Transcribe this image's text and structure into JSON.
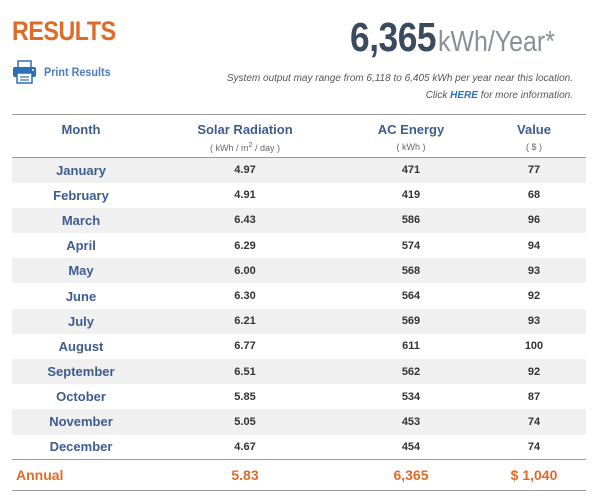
{
  "header": {
    "title": "RESULTS",
    "print_label": "Print Results",
    "total_value": "6,365",
    "total_unit": "kWh/Year*",
    "output_note": "System output may range from 6,118 to 6,405 kWh per year near this location.",
    "click_prefix": "Click ",
    "click_link": "HERE",
    "click_suffix": " for more information."
  },
  "table": {
    "columns": [
      {
        "label": "Month",
        "sub": ""
      },
      {
        "label": "Solar Radiation",
        "sub_pre": "( kWh / m",
        "sub_sup": "2",
        "sub_post": " / day )"
      },
      {
        "label": "AC Energy",
        "sub": "( kWh )"
      },
      {
        "label": "Value",
        "sub": "( $ )"
      }
    ],
    "rows": [
      {
        "month": "January",
        "solar": "4.97",
        "ac": "471",
        "value": "77"
      },
      {
        "month": "February",
        "solar": "4.91",
        "ac": "419",
        "value": "68"
      },
      {
        "month": "March",
        "solar": "6.43",
        "ac": "586",
        "value": "96"
      },
      {
        "month": "April",
        "solar": "6.29",
        "ac": "574",
        "value": "94"
      },
      {
        "month": "May",
        "solar": "6.00",
        "ac": "568",
        "value": "93"
      },
      {
        "month": "June",
        "solar": "6.30",
        "ac": "564",
        "value": "92"
      },
      {
        "month": "July",
        "solar": "6.21",
        "ac": "569",
        "value": "93"
      },
      {
        "month": "August",
        "solar": "6.77",
        "ac": "611",
        "value": "100"
      },
      {
        "month": "September",
        "solar": "6.51",
        "ac": "562",
        "value": "92"
      },
      {
        "month": "October",
        "solar": "5.85",
        "ac": "534",
        "value": "87"
      },
      {
        "month": "November",
        "solar": "5.05",
        "ac": "453",
        "value": "74"
      },
      {
        "month": "December",
        "solar": "4.67",
        "ac": "454",
        "value": "74"
      }
    ],
    "annual": {
      "label": "Annual",
      "solar": "5.83",
      "ac": "6,365",
      "value": "$ 1,040"
    }
  },
  "colors": {
    "accent_orange": "#e06a2a",
    "header_blue": "#3d5c92",
    "link_blue": "#2d6fb5",
    "row_shade": "#f0f0f0"
  },
  "icons": {
    "print": "printer-icon"
  }
}
